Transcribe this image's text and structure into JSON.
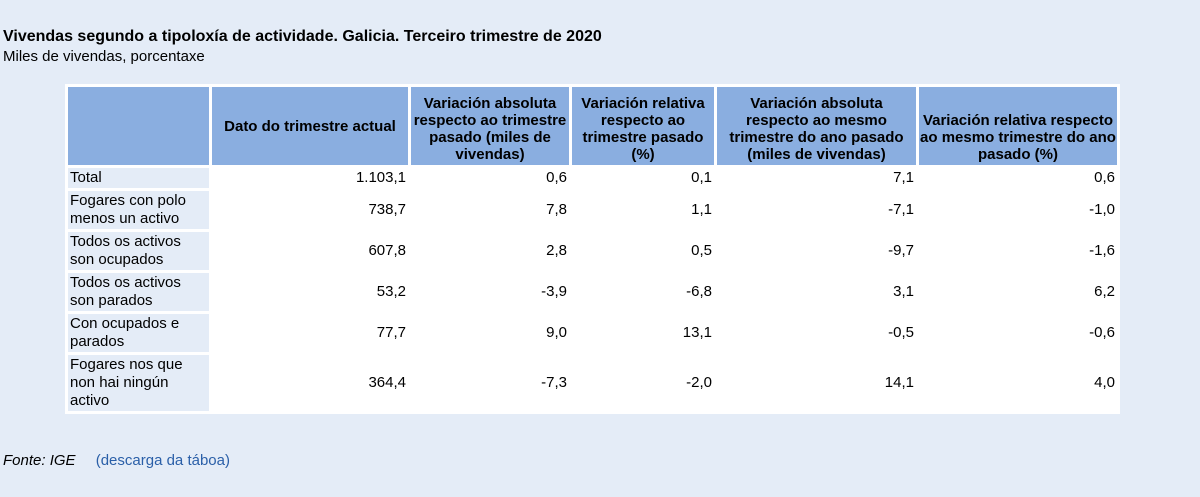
{
  "header": {
    "title": "Vivendas segundo a tipoloxía de actividade. Galicia. Terceiro trimestre de 2020",
    "subtitle": "Miles de vivendas, porcentaxe"
  },
  "table": {
    "columns": [
      "",
      "Dato do trimestre actual",
      "Variación absoluta respecto ao trimestre pasado (miles de vivendas)",
      "Variación relativa respecto ao trimestre pasado (%)",
      "Variación absoluta respecto ao mesmo trimestre do ano pasado (miles de vivendas)",
      "Variación relativa respecto ao mesmo trimestre do ano pasado (%)"
    ],
    "rows": [
      {
        "label": "Total",
        "values": [
          "1.103,1",
          "0,6",
          "0,1",
          "7,1",
          "0,6"
        ]
      },
      {
        "label": "Fogares con polo menos un activo",
        "values": [
          "738,7",
          "7,8",
          "1,1",
          "-7,1",
          "-1,0"
        ]
      },
      {
        "label": "Todos os activos son ocupados",
        "values": [
          "607,8",
          "2,8",
          "0,5",
          "-9,7",
          "-1,6"
        ]
      },
      {
        "label": "Todos os activos son parados",
        "values": [
          "53,2",
          "-3,9",
          "-6,8",
          "3,1",
          "6,2"
        ]
      },
      {
        "label": "Con ocupados e parados",
        "values": [
          "77,7",
          "9,0",
          "13,1",
          "-0,5",
          "-0,6"
        ]
      },
      {
        "label": "Fogares nos que non hai ningún activo",
        "values": [
          "364,4",
          "-7,3",
          "-2,0",
          "14,1",
          "4,0"
        ]
      }
    ]
  },
  "footer": {
    "source": "Fonte: IGE",
    "download_label": "(descarga da táboa)"
  },
  "colors": {
    "background": "#e4ecf7",
    "header_cell": "#8aaee0",
    "link": "#2a5fa8"
  }
}
